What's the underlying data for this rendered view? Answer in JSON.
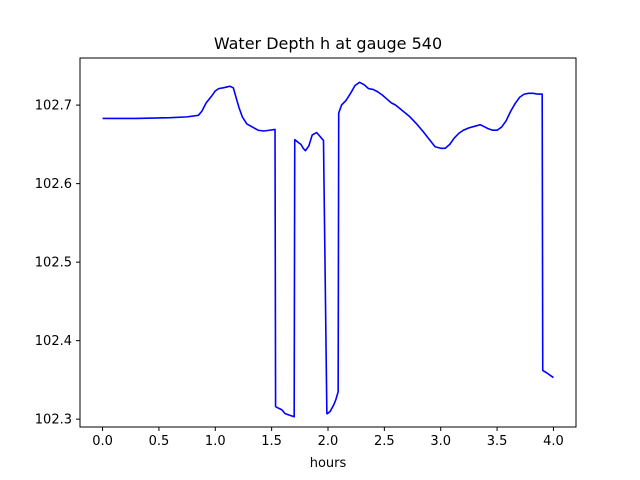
{
  "chart_data": {
    "type": "line",
    "title": "Water Depth h at gauge 540",
    "xlabel": "hours",
    "ylabel": "",
    "xlim": [
      -0.2,
      4.2
    ],
    "ylim": [
      102.29,
      102.76
    ],
    "xticks": [
      0.0,
      0.5,
      1.0,
      1.5,
      2.0,
      2.5,
      3.0,
      3.5,
      4.0
    ],
    "xtick_labels": [
      "0.0",
      "0.5",
      "1.0",
      "1.5",
      "2.0",
      "2.5",
      "3.0",
      "3.5",
      "4.0"
    ],
    "yticks": [
      102.3,
      102.4,
      102.5,
      102.6,
      102.7
    ],
    "ytick_labels": [
      "102.3",
      "102.4",
      "102.5",
      "102.6",
      "102.7"
    ],
    "grid": false,
    "line_color": "#0000ff",
    "series": [
      {
        "x": [
          0.0,
          0.3,
          0.6,
          0.75,
          0.85,
          0.88,
          0.92,
          0.97,
          1.0,
          1.03,
          1.07,
          1.1,
          1.13,
          1.16,
          1.18,
          1.21,
          1.24,
          1.28,
          1.33,
          1.38,
          1.43,
          1.48,
          1.53,
          1.535,
          1.56,
          1.59,
          1.62,
          1.66,
          1.7,
          1.705,
          1.74,
          1.76,
          1.78,
          1.8,
          1.83,
          1.86,
          1.9,
          1.93,
          1.96,
          1.99,
          1.995,
          2.02,
          2.05,
          2.07,
          2.09,
          2.095,
          2.12,
          2.16,
          2.2,
          2.24,
          2.28,
          2.32,
          2.36,
          2.4,
          2.44,
          2.48,
          2.52,
          2.56,
          2.6,
          2.66,
          2.72,
          2.78,
          2.84,
          2.9,
          2.95,
          3.0,
          3.04,
          3.08,
          3.12,
          3.16,
          3.2,
          3.25,
          3.3,
          3.35,
          3.38,
          3.42,
          3.46,
          3.5,
          3.54,
          3.58,
          3.62,
          3.66,
          3.7,
          3.74,
          3.78,
          3.82,
          3.86,
          3.9,
          3.905,
          3.95,
          4.0
        ],
        "y": [
          102.683,
          102.683,
          102.684,
          102.685,
          102.687,
          102.692,
          102.703,
          102.712,
          102.718,
          102.721,
          102.722,
          102.723,
          102.724,
          102.722,
          102.712,
          102.697,
          102.685,
          102.676,
          102.672,
          102.668,
          102.667,
          102.668,
          102.669,
          102.316,
          102.314,
          102.312,
          102.307,
          102.305,
          102.303,
          102.656,
          102.652,
          102.65,
          102.645,
          102.642,
          102.648,
          102.662,
          102.665,
          102.66,
          102.655,
          102.307,
          102.307,
          102.31,
          102.318,
          102.325,
          102.335,
          102.69,
          102.7,
          102.706,
          102.715,
          102.725,
          102.729,
          102.726,
          102.721,
          102.72,
          102.717,
          102.713,
          102.708,
          102.703,
          102.7,
          102.693,
          102.686,
          102.677,
          102.667,
          102.656,
          102.647,
          102.645,
          102.645,
          102.65,
          102.658,
          102.664,
          102.668,
          102.671,
          102.673,
          102.675,
          102.673,
          102.67,
          102.668,
          102.668,
          102.672,
          102.68,
          102.692,
          102.702,
          102.71,
          102.714,
          102.715,
          102.715,
          102.714,
          102.714,
          102.362,
          102.358,
          102.353
        ]
      }
    ]
  }
}
